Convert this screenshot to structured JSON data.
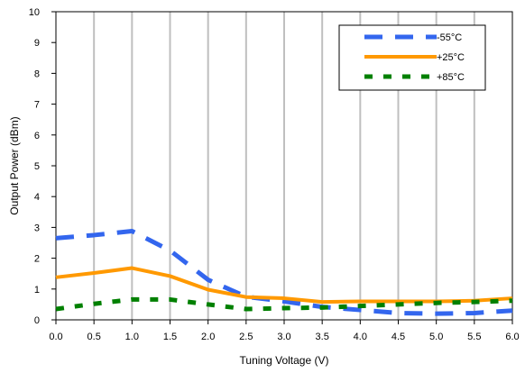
{
  "chart_data": {
    "type": "line",
    "xlabel": "Tuning Voltage (V)",
    "ylabel": "Output Power (dBm)",
    "xlim": [
      0,
      6
    ],
    "ylim": [
      0,
      10
    ],
    "xticks": [
      "0.0",
      "0.5",
      "1.0",
      "1.5",
      "2.0",
      "2.5",
      "3.0",
      "3.5",
      "4.0",
      "4.5",
      "5.0",
      "5.5",
      "6.0"
    ],
    "yticks": [
      "0",
      "1",
      "2",
      "3",
      "4",
      "5",
      "6",
      "7",
      "8",
      "9",
      "10"
    ],
    "grid": "vertical",
    "legend_position": "top-right",
    "series": [
      {
        "name": "-55°C",
        "color": "#3366ee",
        "dash": "dashed-long",
        "x": [
          0,
          0.5,
          1.0,
          1.5,
          2.0,
          2.5,
          3.0,
          3.5,
          4.0,
          4.5,
          5.0,
          5.5,
          6.0
        ],
        "y": [
          2.65,
          2.75,
          2.88,
          2.25,
          1.3,
          0.75,
          0.6,
          0.42,
          0.32,
          0.22,
          0.2,
          0.22,
          0.3
        ]
      },
      {
        "name": "+25°C",
        "color": "#ff9900",
        "dash": "solid",
        "x": [
          0,
          0.5,
          1.0,
          1.5,
          2.0,
          2.5,
          3.0,
          3.5,
          4.0,
          4.5,
          5.0,
          5.5,
          6.0
        ],
        "y": [
          1.38,
          1.52,
          1.68,
          1.42,
          0.98,
          0.74,
          0.7,
          0.58,
          0.6,
          0.6,
          0.6,
          0.62,
          0.7
        ]
      },
      {
        "name": "+85°C",
        "color": "#008000",
        "dash": "dashed-short",
        "x": [
          0,
          0.5,
          1.0,
          1.5,
          2.0,
          2.5,
          3.0,
          3.5,
          4.0,
          4.5,
          5.0,
          5.5,
          6.0
        ],
        "y": [
          0.35,
          0.52,
          0.66,
          0.66,
          0.5,
          0.35,
          0.38,
          0.4,
          0.45,
          0.5,
          0.55,
          0.58,
          0.62
        ]
      }
    ]
  }
}
